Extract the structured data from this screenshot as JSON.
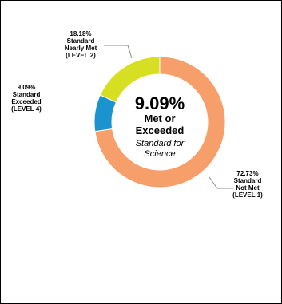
{
  "chart_data": {
    "type": "pie",
    "variant": "donut",
    "center": {
      "value": "9.09%",
      "lines_bold": [
        "Met or",
        "Exceeded"
      ],
      "lines_italic": [
        "Standard for",
        "Science"
      ]
    },
    "slices": [
      {
        "value": 72.73,
        "label_lines": [
          "72.73%",
          "Standard",
          "Not Met",
          "(LEVEL 1)"
        ],
        "color": "#f79f6b"
      },
      {
        "value": 9.09,
        "label_lines": [
          "9.09%",
          "Standard",
          "Exceeded",
          "(LEVEL 4)"
        ],
        "color": "#1a93cf"
      },
      {
        "value": 18.18,
        "label_lines": [
          "18.18%",
          "Standard",
          "Nearly Met",
          "(LEVEL 2)"
        ],
        "color": "#d7df23"
      }
    ]
  }
}
